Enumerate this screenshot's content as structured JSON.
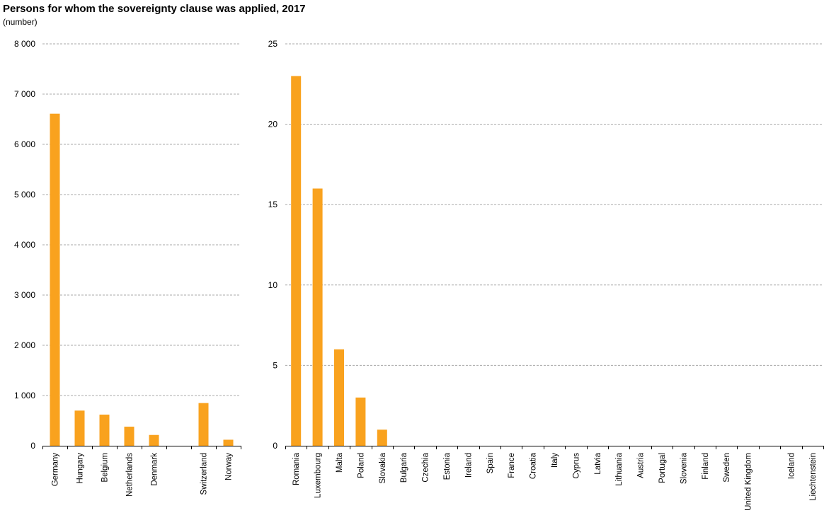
{
  "chart_data": {
    "title": "Persons for whom the sovereignty clause was applied, 2017",
    "subtitle": "(number)",
    "bar_color": "#F9A21E",
    "grid": true,
    "panels": [
      {
        "type": "bar",
        "ylim": [
          0,
          8000
        ],
        "yticks": [
          0,
          1000,
          2000,
          3000,
          4000,
          5000,
          6000,
          7000,
          8000
        ],
        "ytick_labels": [
          "0",
          "1 000",
          "2 000",
          "3 000",
          "4 000",
          "5 000",
          "6 000",
          "7 000",
          "8 000"
        ],
        "categories": [
          "Germany",
          "Hungary",
          "Belgium",
          "Netherlands",
          "Denmark",
          "",
          "Switzerland",
          "Norway"
        ],
        "values": [
          6610,
          700,
          620,
          380,
          215,
          null,
          850,
          120
        ]
      },
      {
        "type": "bar",
        "ylim": [
          0,
          25
        ],
        "yticks": [
          0,
          5,
          10,
          15,
          20,
          25
        ],
        "ytick_labels": [
          "0",
          "5",
          "10",
          "15",
          "20",
          "25"
        ],
        "categories": [
          "Romania",
          "Luxembourg",
          "Malta",
          "Poland",
          "Slovakia",
          "Bulgaria",
          "Czechia",
          "Estonia",
          "Ireland",
          "Spain",
          "France",
          "Croatia",
          "Italy",
          "Cyprus",
          "Latvia",
          "Lithuania",
          "Austria",
          "Portugal",
          "Slovenia",
          "Finland",
          "Sweden",
          "United Kingdom",
          "",
          "Iceland",
          "Liechtenstein"
        ],
        "values": [
          23,
          16,
          6,
          3,
          1,
          0,
          0,
          0,
          0,
          0,
          0,
          0,
          0,
          0,
          0,
          0,
          0,
          0,
          0,
          0,
          0,
          0,
          null,
          0,
          0
        ]
      }
    ]
  }
}
